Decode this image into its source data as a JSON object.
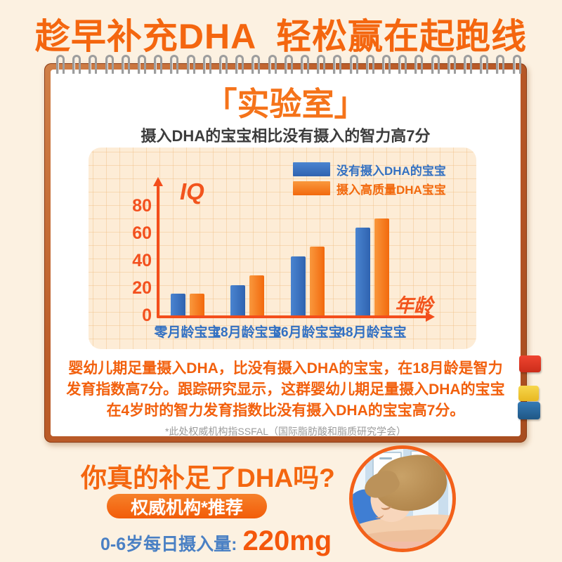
{
  "page": {
    "headline": "趁早补充DHA  轻松赢在起跑线",
    "board": {
      "title": "「实验室」",
      "subtitle": "摄入DHA的宝宝相比没有摄入的智力高7分",
      "note_lines": [
        "婴幼儿期足量摄入DHA，比没有摄入DHA的宝宝，在18月龄是智力",
        "发育指数高7分。跟踪研究显示，这群婴幼儿期足量摄入DHA的宝宝",
        "在4岁时的智力发育指数比没有摄入DHA的宝宝高7分。"
      ],
      "footnote": "*此处权威机构指SSFAL（国际脂肪酸和脂质研究学会）"
    },
    "bottom": {
      "question": "你真的补足了DHA吗?",
      "badge": "权威机构*推荐",
      "intake_label": "0-6岁每日摄入量:",
      "intake_value": "220mg"
    },
    "colors": {
      "background": "#fcf1e1",
      "accent_orange": "#f4660f",
      "axis_orange": "#f34e1c",
      "text_blue": "#3270c2",
      "frame_brown": "#b35424",
      "panel_peach": "#fdecd6",
      "tab_red": "#e13a26",
      "tab_yellow": "#f3cb3a",
      "tab_blue": "#2e6da5"
    },
    "icons": {
      "spiral_binding": "metal-coil",
      "bookmark_tabs": [
        "red",
        "yellow",
        "blue"
      ],
      "photo": "sleeping-child"
    }
  },
  "chart_data": {
    "type": "bar",
    "title": "摄入DHA的宝宝相比没有摄入的智力高7分",
    "categories": [
      "零月龄宝宝",
      "18月龄宝宝",
      "36月龄宝宝",
      "48月龄宝宝"
    ],
    "series": [
      {
        "name": "没有摄入DHA的宝宝",
        "color": "#4a84d0",
        "color_dark": "#2f63b0",
        "label_color": "#3471c1",
        "values": [
          16,
          22,
          43,
          64
        ]
      },
      {
        "name": "摄入高质量DHA宝宝",
        "color": "#f9983d",
        "color_dark": "#f2690d",
        "label_color": "#f2690d",
        "values": [
          16,
          29,
          50,
          71
        ]
      }
    ],
    "xlabel": "年龄",
    "ylabel": "IQ",
    "yticks": [
      0,
      20,
      40,
      60,
      80
    ],
    "ylim": [
      0,
      90
    ],
    "grid": true,
    "legend_position": "top-right"
  }
}
